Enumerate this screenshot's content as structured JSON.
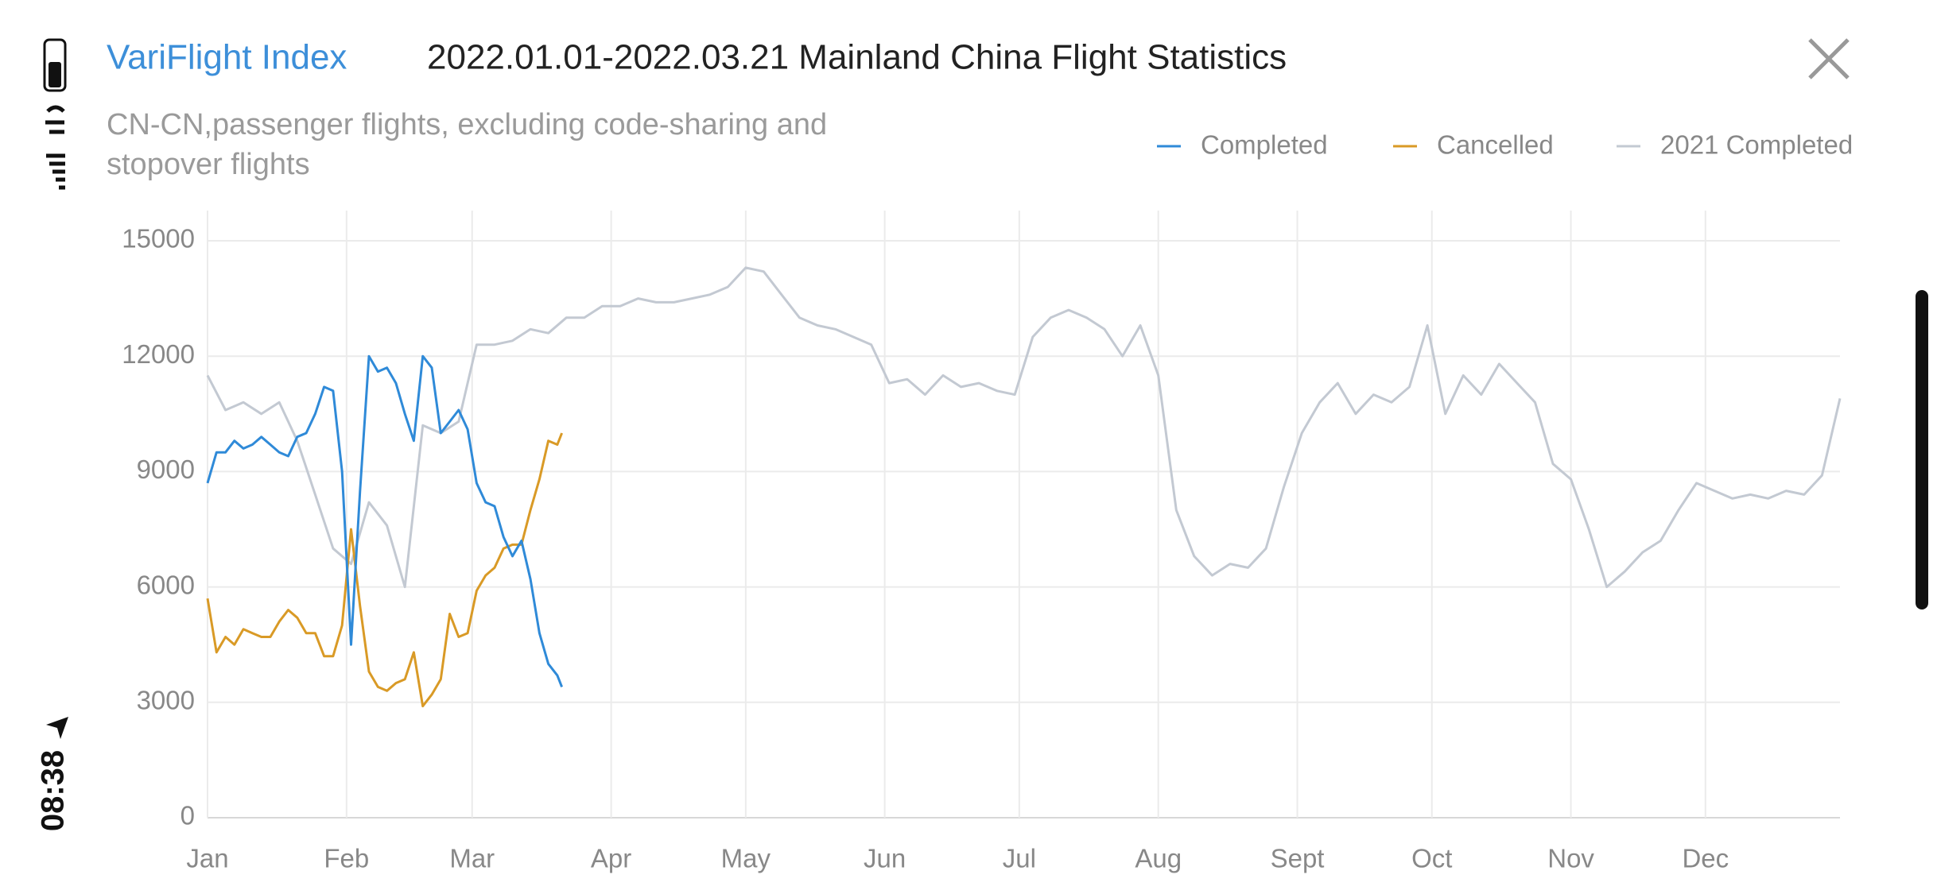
{
  "status_bar": {
    "time": "08:38"
  },
  "brand": "VariFlight Index",
  "chart_data": {
    "type": "line",
    "title": "2022.01.01-2022.03.21 Mainland China Flight Statistics",
    "subtitle": [
      "CN-CN,passenger flights, excluding code-sharing and",
      "stopover flights"
    ],
    "xlim": [
      0,
      364
    ],
    "xticks": [
      {
        "value": 0,
        "label": "Jan"
      },
      {
        "value": 31,
        "label": "Feb"
      },
      {
        "value": 59,
        "label": "Mar"
      },
      {
        "value": 90,
        "label": "Apr"
      },
      {
        "value": 120,
        "label": "May"
      },
      {
        "value": 151,
        "label": "Jun"
      },
      {
        "value": 181,
        "label": "Jul"
      },
      {
        "value": 212,
        "label": "Aug"
      },
      {
        "value": 243,
        "label": "Sept"
      },
      {
        "value": 273,
        "label": "Oct"
      },
      {
        "value": 304,
        "label": "Nov"
      },
      {
        "value": 334,
        "label": "Dec"
      }
    ],
    "ylim": [
      0,
      15000
    ],
    "yticks": [
      0,
      3000,
      6000,
      9000,
      12000,
      15000
    ],
    "grid": true,
    "legend": "top-right",
    "series": [
      {
        "name": "Completed",
        "color": "#2f8ad8",
        "x": [
          0,
          2,
          4,
          6,
          8,
          10,
          12,
          14,
          16,
          18,
          20,
          22,
          24,
          26,
          28,
          30,
          32,
          34,
          36,
          38,
          40,
          42,
          44,
          46,
          48,
          50,
          52,
          54,
          56,
          58,
          60,
          62,
          64,
          66,
          68,
          70,
          72,
          74,
          76,
          78,
          79
        ],
        "values": [
          8700,
          9500,
          9500,
          9800,
          9600,
          9700,
          9900,
          9700,
          9500,
          9400,
          9900,
          10000,
          10500,
          11200,
          11100,
          9000,
          4500,
          8500,
          12000,
          11600,
          11700,
          11300,
          10500,
          9800,
          12000,
          11700,
          10000,
          10300,
          10600,
          10100,
          8700,
          8200,
          8100,
          7300,
          6800,
          7200,
          6200,
          4800,
          4000,
          3700,
          3400
        ]
      },
      {
        "name": "Cancelled",
        "color": "#d99a26",
        "x": [
          0,
          2,
          4,
          6,
          8,
          10,
          12,
          14,
          16,
          18,
          20,
          22,
          24,
          26,
          28,
          30,
          32,
          34,
          36,
          38,
          40,
          42,
          44,
          46,
          48,
          50,
          52,
          54,
          56,
          58,
          60,
          62,
          64,
          66,
          68,
          70,
          72,
          74,
          76,
          78,
          79
        ],
        "values": [
          5700,
          4300,
          4700,
          4500,
          4900,
          4800,
          4700,
          4700,
          5100,
          5400,
          5200,
          4800,
          4800,
          4200,
          4200,
          5000,
          7500,
          5500,
          3800,
          3400,
          3300,
          3500,
          3600,
          4300,
          2900,
          3200,
          3600,
          5300,
          4700,
          4800,
          5900,
          6300,
          6500,
          7000,
          7100,
          7100,
          8000,
          8800,
          9800,
          9700,
          10000
        ]
      },
      {
        "name": "2021 Completed",
        "color": "#c3c9d2",
        "x": [
          0,
          4,
          8,
          12,
          16,
          20,
          24,
          28,
          32,
          36,
          40,
          44,
          48,
          52,
          56,
          60,
          64,
          68,
          72,
          76,
          80,
          84,
          88,
          92,
          96,
          100,
          104,
          108,
          112,
          116,
          120,
          124,
          128,
          132,
          136,
          140,
          144,
          148,
          152,
          156,
          160,
          164,
          168,
          172,
          176,
          180,
          184,
          188,
          192,
          196,
          200,
          204,
          208,
          212,
          216,
          220,
          224,
          228,
          232,
          236,
          240,
          244,
          248,
          252,
          256,
          260,
          264,
          268,
          272,
          276,
          280,
          284,
          288,
          292,
          296,
          300,
          304,
          308,
          312,
          316,
          320,
          324,
          328,
          332,
          336,
          340,
          344,
          348,
          352,
          356,
          360,
          364
        ],
        "values": [
          11500,
          10600,
          10800,
          10500,
          10800,
          9800,
          8400,
          7000,
          6600,
          8200,
          7600,
          6000,
          10200,
          10000,
          10300,
          12300,
          12300,
          12400,
          12700,
          12600,
          13000,
          13000,
          13300,
          13300,
          13500,
          13400,
          13400,
          13500,
          13600,
          13800,
          14300,
          14200,
          13600,
          13000,
          12800,
          12700,
          12500,
          12300,
          11300,
          11400,
          11000,
          11500,
          11200,
          11300,
          11100,
          11000,
          12500,
          13000,
          13200,
          13000,
          12700,
          12000,
          12800,
          11500,
          8000,
          6800,
          6300,
          6600,
          6500,
          7000,
          8600,
          10000,
          10800,
          11300,
          10500,
          11000,
          10800,
          11200,
          12800,
          10500,
          11500,
          11000,
          11800,
          11300,
          10800,
          9200,
          8800,
          7500,
          6000,
          6400,
          6900,
          7200,
          8000,
          8700,
          8500,
          8300,
          8400,
          8300,
          8500,
          8400,
          8900,
          10900
        ]
      }
    ]
  }
}
